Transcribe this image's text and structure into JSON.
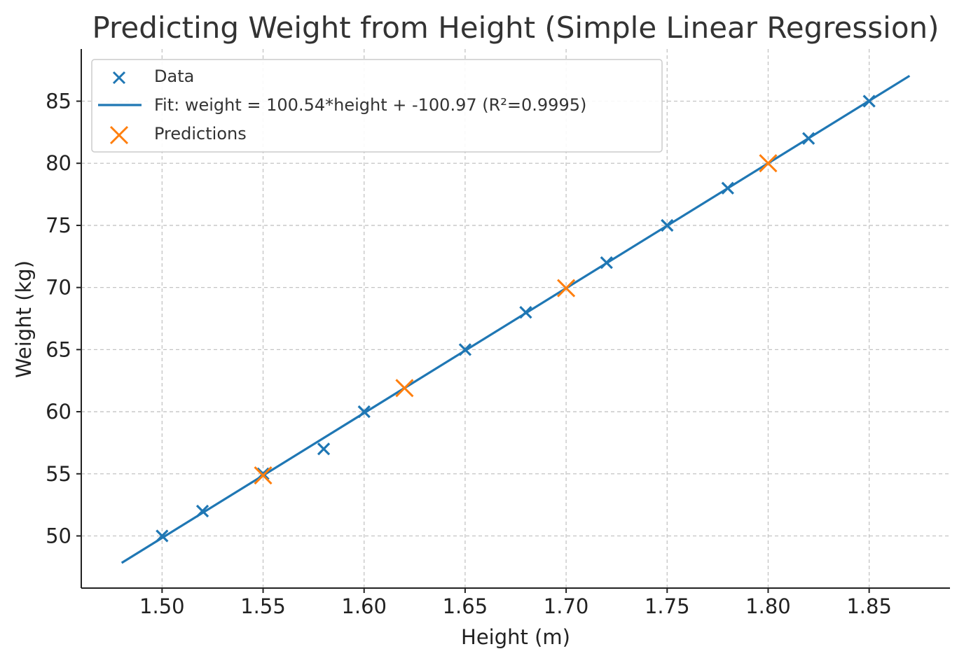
{
  "chart_data": {
    "type": "scatter",
    "title": "Predicting Weight from Height (Simple Linear Regression)",
    "xlabel": "Height (m)",
    "ylabel": "Weight (kg)",
    "xlim": [
      1.46,
      1.89
    ],
    "ylim": [
      45.8,
      89.2
    ],
    "xticks": [
      "1.50",
      "1.55",
      "1.60",
      "1.65",
      "1.70",
      "1.75",
      "1.80",
      "1.85"
    ],
    "yticks": [
      "50",
      "55",
      "60",
      "65",
      "70",
      "75",
      "80",
      "85"
    ],
    "grid": true,
    "legend_position": "top-left",
    "series": [
      {
        "name": "Data",
        "type": "scatter",
        "marker": "x",
        "color": "#1f77b4",
        "points": [
          [
            1.5,
            50
          ],
          [
            1.52,
            52
          ],
          [
            1.55,
            55
          ],
          [
            1.58,
            57
          ],
          [
            1.6,
            60
          ],
          [
            1.65,
            65
          ],
          [
            1.68,
            68
          ],
          [
            1.72,
            72
          ],
          [
            1.75,
            75
          ],
          [
            1.78,
            78
          ],
          [
            1.82,
            82
          ],
          [
            1.85,
            85
          ]
        ]
      },
      {
        "name": "Fit: weight = 100.54*height + -100.97 (R²=0.9995)",
        "type": "line",
        "color": "#1f77b4",
        "points": [
          [
            1.48,
            47.83
          ],
          [
            1.87,
            87.04
          ]
        ]
      },
      {
        "name": "Predictions",
        "type": "scatter",
        "marker": "x",
        "color": "#ff7f0e",
        "points": [
          [
            1.55,
            54.87
          ],
          [
            1.62,
            61.9
          ],
          [
            1.7,
            69.95
          ],
          [
            1.8,
            80.0
          ]
        ]
      }
    ]
  }
}
